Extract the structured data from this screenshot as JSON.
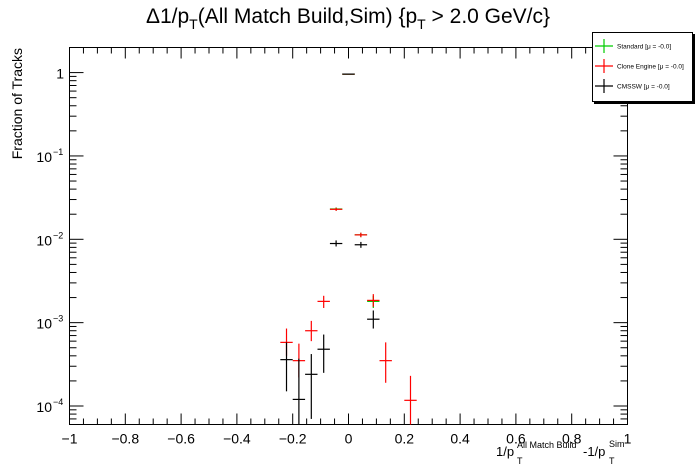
{
  "chart_data": {
    "type": "scatter",
    "title": "Δ1/p_T(All Match Build,Sim) {p_T > 2.0 GeV/c}",
    "title_parts": {
      "a": "Δ1/p",
      "sub1": "T",
      "b": "(All Match Build,Sim) {p",
      "sub2": "T",
      "c": " > 2.0 GeV/c}"
    },
    "ylabel": "Fraction of Tracks",
    "xlabel_parts": {
      "a": "1/p",
      "sup1": "All Match Build",
      "sub1": "T",
      "b": "-1/p",
      "sup2": "Sim",
      "sub2": "T"
    },
    "xlim": [
      -1,
      1
    ],
    "ylim": [
      6e-05,
      2
    ],
    "yscale": "log",
    "bin_width": 0.0444,
    "x_ticks": [
      -1,
      -0.8,
      -0.6,
      -0.4,
      -0.2,
      0,
      0.2,
      0.4,
      0.6,
      0.8,
      1
    ],
    "x_tick_labels": [
      "−1",
      "−0.8",
      "−0.6",
      "−0.4",
      "−0.2",
      "0",
      "0.2",
      "0.4",
      "0.6",
      "0.8",
      "1"
    ],
    "y_ticks": [
      {
        "value": 1,
        "base": "1",
        "exp": ""
      },
      {
        "value": 0.1,
        "base": "10",
        "exp": "−1"
      },
      {
        "value": 0.01,
        "base": "10",
        "exp": "−2"
      },
      {
        "value": 0.001,
        "base": "10",
        "exp": "−3"
      },
      {
        "value": 0.0001,
        "base": "10",
        "exp": "−4"
      }
    ],
    "legend_position": "top-right",
    "series": [
      {
        "name": "Standard  [μ = -0.0]",
        "color": "#00cc00",
        "points": [
          {
            "x": -0.0444,
            "y": 0.0231,
            "ylo": 0.0221,
            "yhi": 0.0241
          },
          {
            "x": 0.0,
            "y": 0.9595,
            "ylo": 0.955,
            "yhi": 0.964
          },
          {
            "x": 0.0444,
            "y": 0.0113,
            "ylo": 0.0106,
            "yhi": 0.012
          },
          {
            "x": 0.0889,
            "y": 0.0018,
            "ylo": 0.0015,
            "yhi": 0.0021
          }
        ]
      },
      {
        "name": "Clone Engine  [μ = -0.0]",
        "color": "#ff0000",
        "points": [
          {
            "x": -0.2222,
            "y": 0.00058,
            "ylo": 0.0004,
            "yhi": 0.00085
          },
          {
            "x": -0.1778,
            "y": 0.00035,
            "ylo": 0.00022,
            "yhi": 0.00056
          },
          {
            "x": -0.1333,
            "y": 0.0008,
            "ylo": 0.0006,
            "yhi": 0.00105
          },
          {
            "x": -0.0889,
            "y": 0.0018,
            "ylo": 0.0015,
            "yhi": 0.0021
          },
          {
            "x": -0.0444,
            "y": 0.0229,
            "ylo": 0.0219,
            "yhi": 0.0239
          },
          {
            "x": 0.0,
            "y": 0.9595,
            "ylo": 0.955,
            "yhi": 0.964
          },
          {
            "x": 0.0444,
            "y": 0.0113,
            "ylo": 0.0106,
            "yhi": 0.012
          },
          {
            "x": 0.0889,
            "y": 0.00185,
            "ylo": 0.00155,
            "yhi": 0.0022
          },
          {
            "x": 0.1333,
            "y": 0.00035,
            "ylo": 0.00019,
            "yhi": 0.00058
          },
          {
            "x": 0.2222,
            "y": 0.000117,
            "ylo": 6e-05,
            "yhi": 0.00023
          }
        ]
      },
      {
        "name": "CMSSW  [μ = -0.0]",
        "color": "#000000",
        "points": [
          {
            "x": -0.2222,
            "y": 0.00036,
            "ylo": 0.00015,
            "yhi": 0.00058
          },
          {
            "x": -0.1778,
            "y": 0.00012,
            "ylo": 6e-05,
            "yhi": 0.00037
          },
          {
            "x": -0.1333,
            "y": 0.00024,
            "ylo": 7e-05,
            "yhi": 0.00042
          },
          {
            "x": -0.0889,
            "y": 0.00048,
            "ylo": 0.00025,
            "yhi": 0.00072
          },
          {
            "x": -0.0444,
            "y": 0.0089,
            "ylo": 0.0082,
            "yhi": 0.0097
          },
          {
            "x": 0.0,
            "y": 0.9595,
            "ylo": 0.955,
            "yhi": 0.964
          },
          {
            "x": 0.0444,
            "y": 0.0086,
            "ylo": 0.0079,
            "yhi": 0.0093
          },
          {
            "x": 0.0889,
            "y": 0.0011,
            "ylo": 0.00085,
            "yhi": 0.0014
          }
        ]
      }
    ]
  }
}
